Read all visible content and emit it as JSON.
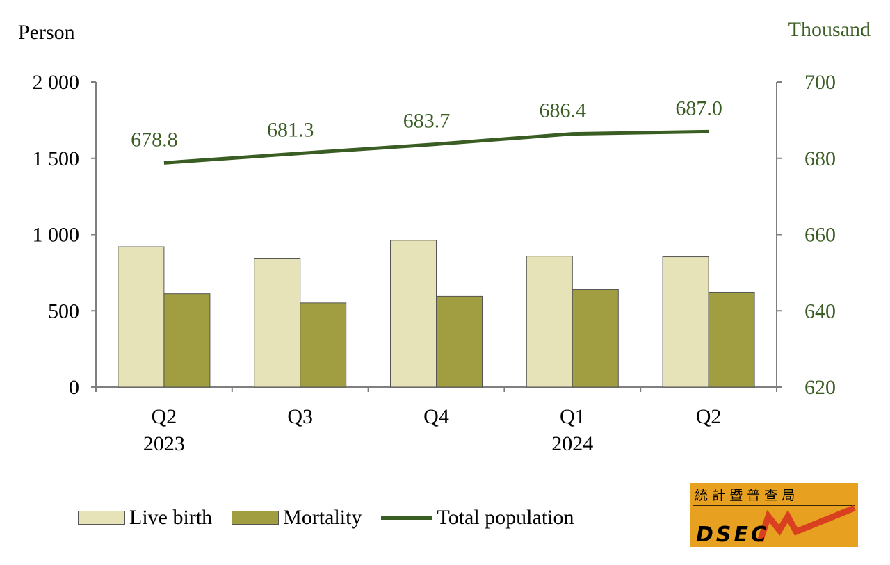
{
  "chart_data": {
    "type": "bar",
    "left_axis_unit": "Person",
    "right_axis_unit": "Thousand",
    "categories": [
      "Q2",
      "Q3",
      "Q4",
      "Q1",
      "Q2"
    ],
    "year_labels": [
      "2023",
      "",
      "",
      "2024",
      ""
    ],
    "y_left": {
      "ylim": [
        0,
        2000
      ],
      "ticks": [
        0,
        500,
        1000,
        1500,
        2000
      ],
      "tick_labels": [
        "0",
        "500",
        "1 000",
        "1 500",
        "2 000"
      ]
    },
    "y_right": {
      "ylim": [
        620,
        700
      ],
      "ticks": [
        620,
        640,
        660,
        680,
        700
      ],
      "tick_labels": [
        "620",
        "640",
        "660",
        "680",
        "700"
      ]
    },
    "series": [
      {
        "name": "Live birth",
        "kind": "bar",
        "axis": "left",
        "color": "#e6e3b8",
        "values": [
          920,
          845,
          962,
          858,
          854
        ]
      },
      {
        "name": "Mortality",
        "kind": "bar",
        "axis": "left",
        "color": "#a09e40",
        "values": [
          612,
          552,
          595,
          640,
          622
        ]
      },
      {
        "name": "Total population",
        "kind": "line",
        "axis": "right",
        "color": "#3a5d23",
        "values": [
          678.8,
          681.3,
          683.7,
          686.4,
          687.0
        ],
        "data_labels": [
          "678.8",
          "681.3",
          "683.7",
          "686.4",
          "687.0"
        ]
      }
    ],
    "grid": false,
    "legend_placement": "bottom"
  },
  "logo": {
    "text": "DSEC",
    "chinese": "統 計 暨 普 查 局",
    "background": "#e8a020",
    "zigzag_color": "#d94020"
  }
}
